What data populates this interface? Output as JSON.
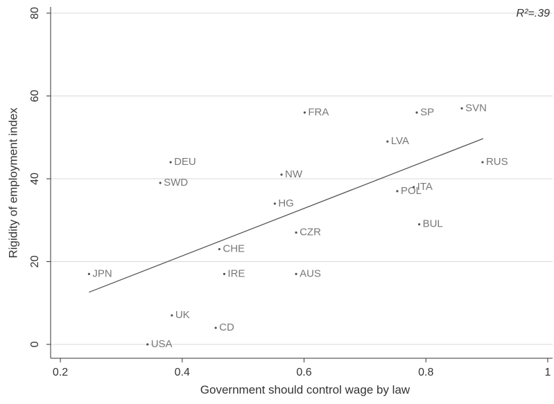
{
  "chart_data": {
    "type": "scatter",
    "x_label": "Government should control wage by law",
    "y_label": "Rigidity of employment index",
    "annotation": "R²=.39",
    "labels": [
      "JPN",
      "USA",
      "UK",
      "CD",
      "IRE",
      "CHE",
      "SWD",
      "DEU",
      "HG",
      "NW",
      "CZR",
      "AUS",
      "FRA",
      "LVA",
      "SP",
      "SVN",
      "POL",
      "ITA",
      "BUL",
      "RUS"
    ],
    "x": [
      0.247,
      0.343,
      0.383,
      0.455,
      0.469,
      0.461,
      0.364,
      0.381,
      0.552,
      0.563,
      0.587,
      0.587,
      0.601,
      0.737,
      0.785,
      0.859,
      0.753,
      0.78,
      0.789,
      0.893
    ],
    "y": [
      17,
      0,
      7,
      4,
      17,
      23,
      39,
      44,
      34,
      41,
      27,
      17,
      56,
      49,
      56,
      57,
      37,
      38,
      29,
      44
    ],
    "color": "#555555",
    "fit_line": {
      "x": [
        0.247,
        0.894
      ],
      "y": [
        12.6,
        49.7
      ],
      "color": "#555555"
    },
    "xlim": [
      0.184,
      1.008
    ],
    "ylim": [
      -3.35,
      81.5
    ],
    "xticks": [
      0.2,
      0.4,
      0.6,
      0.8,
      1
    ],
    "yticks": [
      0,
      20,
      40,
      60,
      80
    ],
    "grid": true
  }
}
